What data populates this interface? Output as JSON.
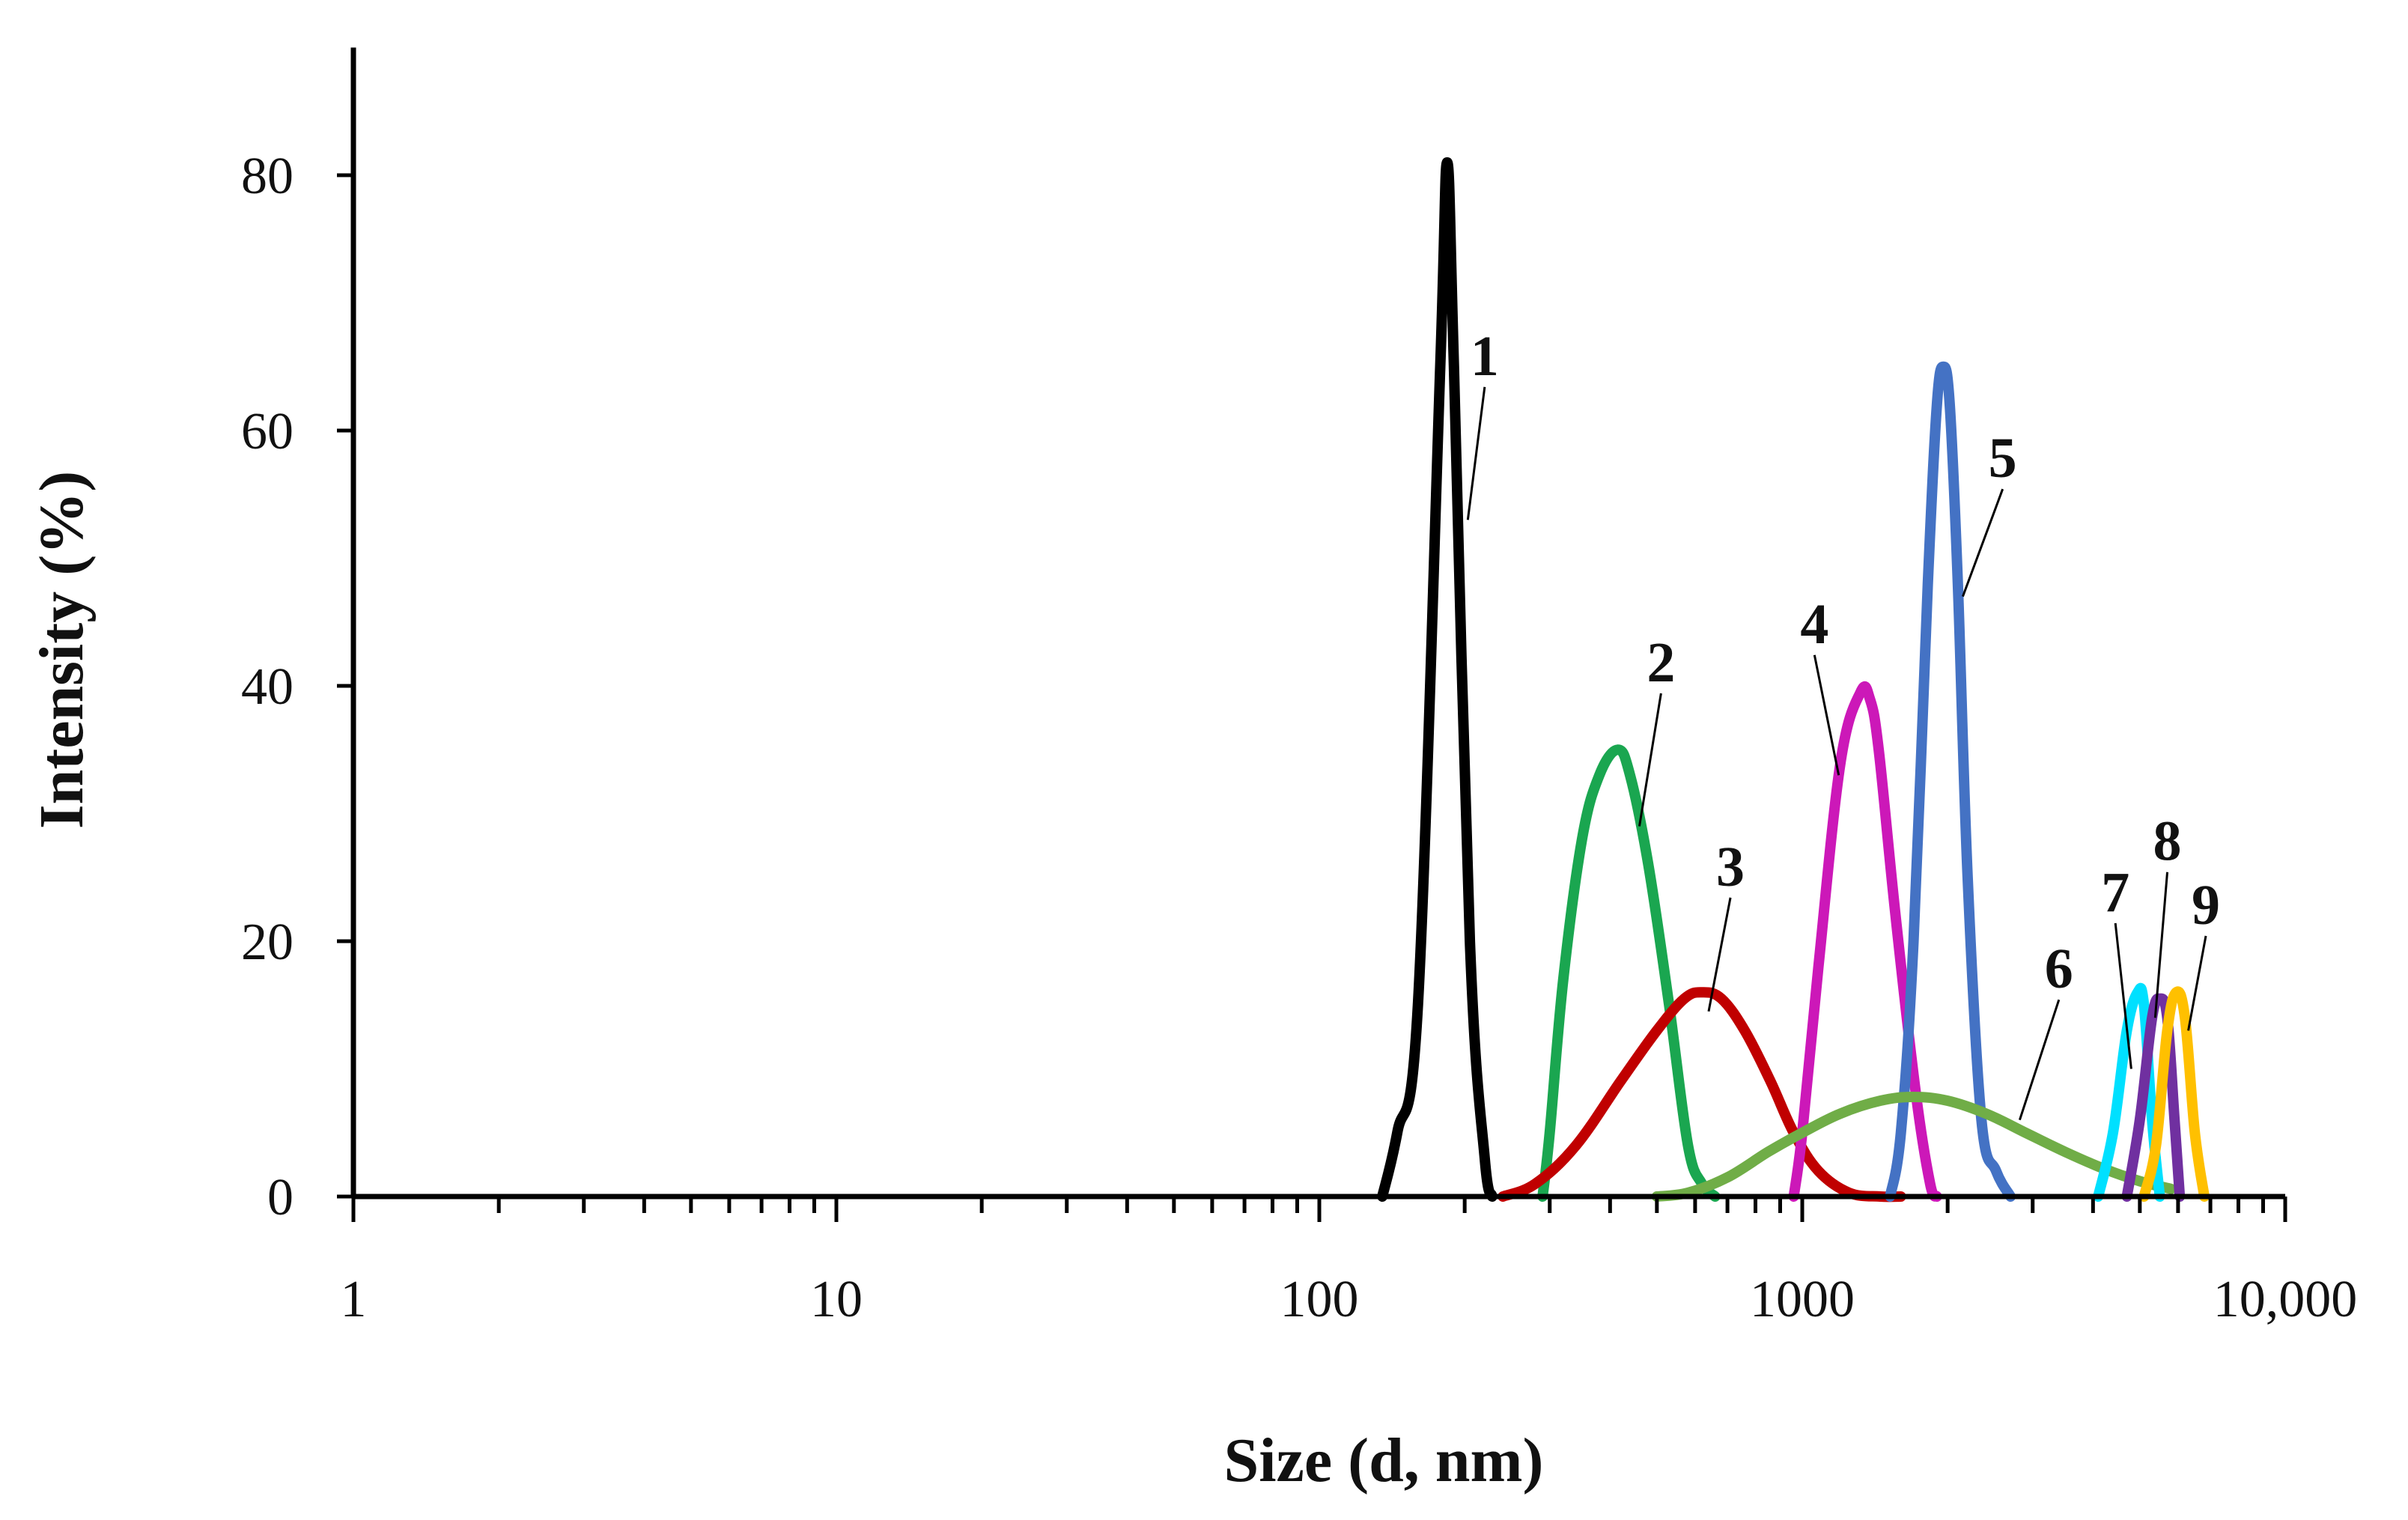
{
  "chart_data": {
    "type": "line",
    "title": "",
    "xlabel": "Size (d, nm)",
    "ylabel": "Intensity (%)",
    "xscale": "log",
    "xlim": [
      1,
      10000
    ],
    "ylim": [
      0,
      90
    ],
    "grid": false,
    "x_tick_labels": [
      {
        "value": 1,
        "label": "1"
      },
      {
        "value": 10,
        "label": "10"
      },
      {
        "value": 100,
        "label": "100"
      },
      {
        "value": 1000,
        "label": "1000"
      },
      {
        "value": 10000,
        "label": "10,000"
      }
    ],
    "y_ticks": [
      0,
      20,
      40,
      60,
      80
    ],
    "y_tick_labels": [
      "0",
      "20",
      "40",
      "60",
      "80"
    ],
    "series": [
      {
        "name": "1",
        "color": "#000000",
        "x": [
          135,
          145,
          160,
          178,
          184,
          190,
          205,
          220,
          228
        ],
        "y": [
          0,
          5,
          15,
          65,
          81,
          65,
          20,
          3,
          0
        ],
        "label_x": 220,
        "label_y": 64,
        "anchor_x": 203,
        "anchor_y": 53
      },
      {
        "name": "2",
        "color": "#1aa650",
        "x": [
          290,
          300,
          320,
          350,
          380,
          415,
          440,
          480,
          530,
          580,
          620,
          660
        ],
        "y": [
          0,
          5,
          17,
          28,
          33,
          35,
          33,
          26,
          15,
          4,
          1,
          0
        ],
        "label_x": 510,
        "label_y": 40,
        "anchor_x": 460,
        "anchor_y": 29
      },
      {
        "name": "3",
        "color": "#c00000",
        "x": [
          240,
          280,
          340,
          420,
          500,
          570,
          620,
          680,
          760,
          860,
          960,
          1080,
          1250,
          1450,
          1600
        ],
        "y": [
          0,
          1,
          4,
          9,
          13,
          15.5,
          16,
          15.5,
          13,
          9,
          5,
          2,
          0.3,
          0,
          0
        ],
        "label_x": 710,
        "label_y": 24,
        "anchor_x": 640,
        "anchor_y": 14.5
      },
      {
        "name": "4",
        "color": "#cc18b8",
        "x": [
          960,
          1000,
          1080,
          1200,
          1320,
          1380,
          1440,
          1560,
          1720,
          1840,
          1900
        ],
        "y": [
          0,
          5,
          18,
          34,
          39.5,
          39,
          35,
          22,
          8,
          1,
          0
        ],
        "label_x": 1060,
        "label_y": 43,
        "anchor_x": 1190,
        "anchor_y": 33
      },
      {
        "name": "5",
        "color": "#4472c4",
        "x": [
          1520,
          1600,
          1700,
          1820,
          1900,
          1960,
          2020,
          2100,
          2200,
          2350,
          2520,
          2700
        ],
        "y": [
          0,
          5,
          20,
          48,
          62,
          65,
          62,
          48,
          25,
          6,
          2,
          0
        ],
        "label_x": 2600,
        "label_y": 56,
        "anchor_x": 2150,
        "anchor_y": 47
      },
      {
        "name": "6",
        "color": "#70ad47",
        "x": [
          500,
          580,
          700,
          850,
          1000,
          1200,
          1450,
          1700,
          2000,
          2400,
          2900,
          3500,
          4200,
          5000,
          5800
        ],
        "y": [
          0,
          0.3,
          1.5,
          3.5,
          5,
          6.5,
          7.5,
          7.8,
          7.5,
          6.5,
          5,
          3.5,
          2.2,
          1.2,
          0.6
        ],
        "label_x": 3400,
        "label_y": 16,
        "anchor_x": 2820,
        "anchor_y": 6
      },
      {
        "name": "7",
        "color": "#00e0ff",
        "x": [
          4100,
          4400,
          4700,
          4950,
          5100,
          5300,
          5500
        ],
        "y": [
          0,
          5,
          13,
          16,
          15,
          6,
          0
        ],
        "label_x": 4450,
        "label_y": 22,
        "anchor_x": 4800,
        "anchor_y": 10
      },
      {
        "name": "8",
        "color": "#7030a0",
        "x": [
          4700,
          5000,
          5300,
          5500,
          5700,
          5900,
          6050
        ],
        "y": [
          0,
          6,
          14,
          15.5,
          14,
          6,
          0
        ],
        "label_x": 5700,
        "label_y": 26,
        "anchor_x": 5380,
        "anchor_y": 14
      },
      {
        "name": "9",
        "color": "#ffc000",
        "x": [
          5100,
          5400,
          5700,
          5950,
          6200,
          6500,
          6800
        ],
        "y": [
          0,
          4,
          13,
          16,
          14,
          5,
          0
        ],
        "label_x": 6850,
        "label_y": 21,
        "anchor_x": 6300,
        "anchor_y": 13
      }
    ]
  }
}
